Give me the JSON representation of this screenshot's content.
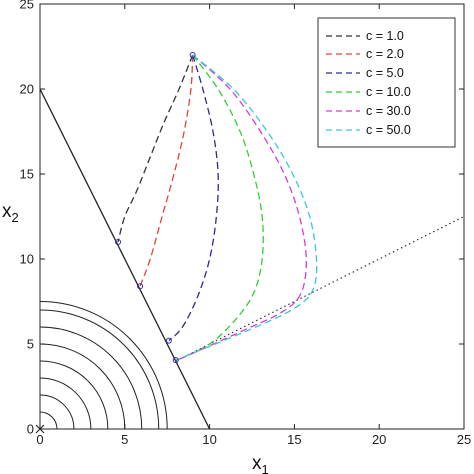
{
  "chart_data": {
    "type": "line",
    "xlabel": "x",
    "xlabel_sub": "1",
    "ylabel": "x",
    "ylabel_sub": "2",
    "xlim": [
      0,
      25
    ],
    "ylim": [
      0,
      25
    ],
    "xticks": [
      "0",
      "5",
      "10",
      "15",
      "20",
      "25"
    ],
    "yticks": [
      "0",
      "5",
      "10",
      "15",
      "20",
      "25"
    ],
    "grid": false,
    "legend_position": "top-right",
    "series": [
      {
        "name": "c = 1.0",
        "color": "#333333",
        "points": [
          [
            9,
            22
          ],
          [
            8.2,
            20
          ],
          [
            7.3,
            18
          ],
          [
            6.5,
            16
          ],
          [
            5.7,
            14
          ],
          [
            5.0,
            12.5
          ],
          [
            4.6,
            11
          ]
        ]
      },
      {
        "name": "c = 2.0",
        "color": "#e0443a",
        "points": [
          [
            9,
            22
          ],
          [
            8.9,
            20
          ],
          [
            8.5,
            17.5
          ],
          [
            7.9,
            15
          ],
          [
            7.2,
            12.5
          ],
          [
            6.5,
            10
          ],
          [
            5.9,
            8.4
          ]
        ]
      },
      {
        "name": "c = 5.0",
        "color": "#2b2b8f",
        "points": [
          [
            9,
            22
          ],
          [
            9.6,
            20
          ],
          [
            10.2,
            17.5
          ],
          [
            10.5,
            15
          ],
          [
            10.4,
            12.5
          ],
          [
            10.0,
            10
          ],
          [
            9.3,
            7.8
          ],
          [
            8.4,
            6
          ],
          [
            7.6,
            5.2
          ]
        ]
      },
      {
        "name": "c = 10.0",
        "color": "#33cc33",
        "points": [
          [
            9,
            22
          ],
          [
            10.5,
            20
          ],
          [
            11.8,
            17.5
          ],
          [
            12.6,
            15
          ],
          [
            13.1,
            12.5
          ],
          [
            13.1,
            10
          ],
          [
            12.6,
            8
          ],
          [
            11.5,
            6.4
          ],
          [
            10.0,
            5.0
          ],
          [
            8.2,
            4.1
          ]
        ]
      },
      {
        "name": "c = 30.0",
        "color": "#d63cd6",
        "points": [
          [
            9,
            22
          ],
          [
            11.2,
            20
          ],
          [
            13.0,
            17.5
          ],
          [
            14.4,
            15
          ],
          [
            15.3,
            12.5
          ],
          [
            15.7,
            10
          ],
          [
            15.4,
            8
          ],
          [
            14.3,
            6.9
          ],
          [
            12.0,
            5.8
          ],
          [
            8.1,
            4.05
          ]
        ]
      },
      {
        "name": "c = 50.0",
        "color": "#36c9d9",
        "points": [
          [
            9,
            22
          ],
          [
            11.4,
            20
          ],
          [
            13.4,
            17.5
          ],
          [
            14.9,
            15
          ],
          [
            15.9,
            12.5
          ],
          [
            16.3,
            10
          ],
          [
            16.1,
            8.2
          ],
          [
            15.0,
            7.1
          ],
          [
            12.5,
            5.9
          ],
          [
            8.0,
            4.05
          ]
        ]
      }
    ],
    "constraint_line": {
      "from": [
        0,
        20
      ],
      "to": [
        10,
        0
      ]
    },
    "dotted_line": {
      "from": [
        8,
        4
      ],
      "to": [
        25,
        12.5
      ]
    },
    "contour_radii": [
      1,
      2,
      3,
      4,
      5,
      6,
      7,
      7.5
    ],
    "start_point": [
      9,
      22
    ],
    "end_markers": [
      [
        4.6,
        11
      ],
      [
        5.9,
        8.4
      ],
      [
        7.6,
        5.2
      ],
      [
        8.0,
        4.05
      ]
    ],
    "origin_marker": [
      0,
      0
    ]
  }
}
